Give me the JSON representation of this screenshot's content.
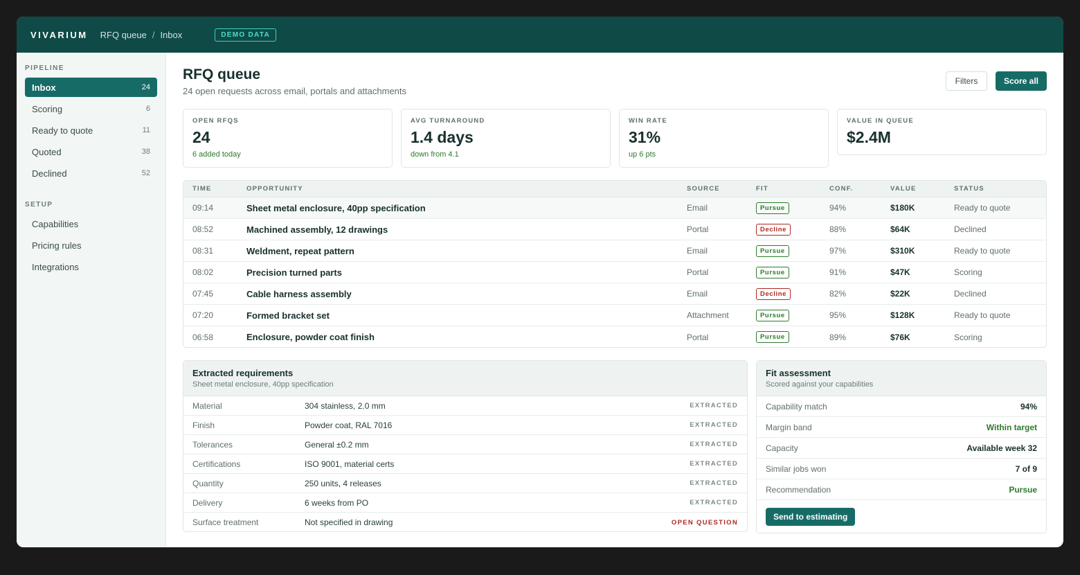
{
  "topbar": {
    "brand": "VIVARIUM",
    "breadcrumb": [
      "RFQ queue",
      "Inbox"
    ],
    "breadcrumb_sep": "/",
    "demo_badge": "DEMO DATA"
  },
  "sidebar": {
    "pipeline_label": "PIPELINE",
    "pipeline": [
      {
        "label": "Inbox",
        "count": "24",
        "active": true
      },
      {
        "label": "Scoring",
        "count": "6"
      },
      {
        "label": "Ready to quote",
        "count": "11"
      },
      {
        "label": "Quoted",
        "count": "38"
      },
      {
        "label": "Declined",
        "count": "52"
      }
    ],
    "setup_label": "SETUP",
    "setup": [
      {
        "label": "Capabilities"
      },
      {
        "label": "Pricing rules"
      },
      {
        "label": "Integrations"
      }
    ]
  },
  "header": {
    "title": "RFQ queue",
    "subtitle": "24 open requests across email, portals and attachments",
    "filters_label": "Filters",
    "score_all_label": "Score all"
  },
  "kpis": [
    {
      "label": "OPEN RFQS",
      "value": "24",
      "note": "6 added today"
    },
    {
      "label": "AVG TURNAROUND",
      "value": "1.4 days",
      "note": "down from 4.1"
    },
    {
      "label": "WIN RATE",
      "value": "31%",
      "note": "up 6 pts"
    },
    {
      "label": "VALUE IN QUEUE",
      "value": "$2.4M"
    }
  ],
  "table": {
    "headers": {
      "time": "TIME",
      "opportunity": "OPPORTUNITY",
      "source": "SOURCE",
      "fit": "FIT",
      "conf": "CONF.",
      "value": "VALUE",
      "status": "STATUS"
    },
    "rows": [
      {
        "time": "09:14",
        "opportunity": "Sheet metal enclosure, 40pp specification",
        "source": "Email",
        "fit": "Pursue",
        "conf": "94%",
        "value": "$180K",
        "status": "Ready to quote"
      },
      {
        "time": "08:52",
        "opportunity": "Machined assembly, 12 drawings",
        "source": "Portal",
        "fit": "Decline",
        "conf": "88%",
        "value": "$64K",
        "status": "Declined"
      },
      {
        "time": "08:31",
        "opportunity": "Weldment, repeat pattern",
        "source": "Email",
        "fit": "Pursue",
        "conf": "97%",
        "value": "$310K",
        "status": "Ready to quote"
      },
      {
        "time": "08:02",
        "opportunity": "Precision turned parts",
        "source": "Portal",
        "fit": "Pursue",
        "conf": "91%",
        "value": "$47K",
        "status": "Scoring"
      },
      {
        "time": "07:45",
        "opportunity": "Cable harness assembly",
        "source": "Email",
        "fit": "Decline",
        "conf": "82%",
        "value": "$22K",
        "status": "Declined"
      },
      {
        "time": "07:20",
        "opportunity": "Formed bracket set",
        "source": "Attachment",
        "fit": "Pursue",
        "conf": "95%",
        "value": "$128K",
        "status": "Ready to quote"
      },
      {
        "time": "06:58",
        "opportunity": "Enclosure, powder coat finish",
        "source": "Portal",
        "fit": "Pursue",
        "conf": "89%",
        "value": "$76K",
        "status": "Scoring"
      }
    ]
  },
  "requirements": {
    "title": "Extracted requirements",
    "subtitle": "Sheet metal enclosure, 40pp specification",
    "rows": [
      {
        "key": "Material",
        "value": "304 stainless, 2.0 mm",
        "tag": "EXTRACTED"
      },
      {
        "key": "Finish",
        "value": "Powder coat, RAL 7016",
        "tag": "EXTRACTED"
      },
      {
        "key": "Tolerances",
        "value": "General ±0.2 mm",
        "tag": "EXTRACTED"
      },
      {
        "key": "Certifications",
        "value": "ISO 9001, material certs",
        "tag": "EXTRACTED"
      },
      {
        "key": "Quantity",
        "value": "250 units, 4 releases",
        "tag": "EXTRACTED"
      },
      {
        "key": "Delivery",
        "value": "6 weeks from PO",
        "tag": "EXTRACTED"
      },
      {
        "key": "Surface treatment",
        "value": "Not specified in drawing",
        "tag": "OPEN QUESTION"
      }
    ]
  },
  "fit_assessment": {
    "title": "Fit assessment",
    "subtitle": "Scored against your capabilities",
    "rows": [
      {
        "key": "Capability match",
        "value": "94%"
      },
      {
        "key": "Margin band",
        "value": "Within target",
        "highlight": true
      },
      {
        "key": "Capacity",
        "value": "Available week 32"
      },
      {
        "key": "Similar jobs won",
        "value": "7 of 9"
      },
      {
        "key": "Recommendation",
        "value": "Pursue",
        "highlight": true
      }
    ],
    "action_label": "Send to estimating"
  },
  "colors": {
    "brand": "#0f4a47",
    "accent": "#176b66",
    "pursue": "#2d7a2a",
    "decline": "#b0281f"
  }
}
